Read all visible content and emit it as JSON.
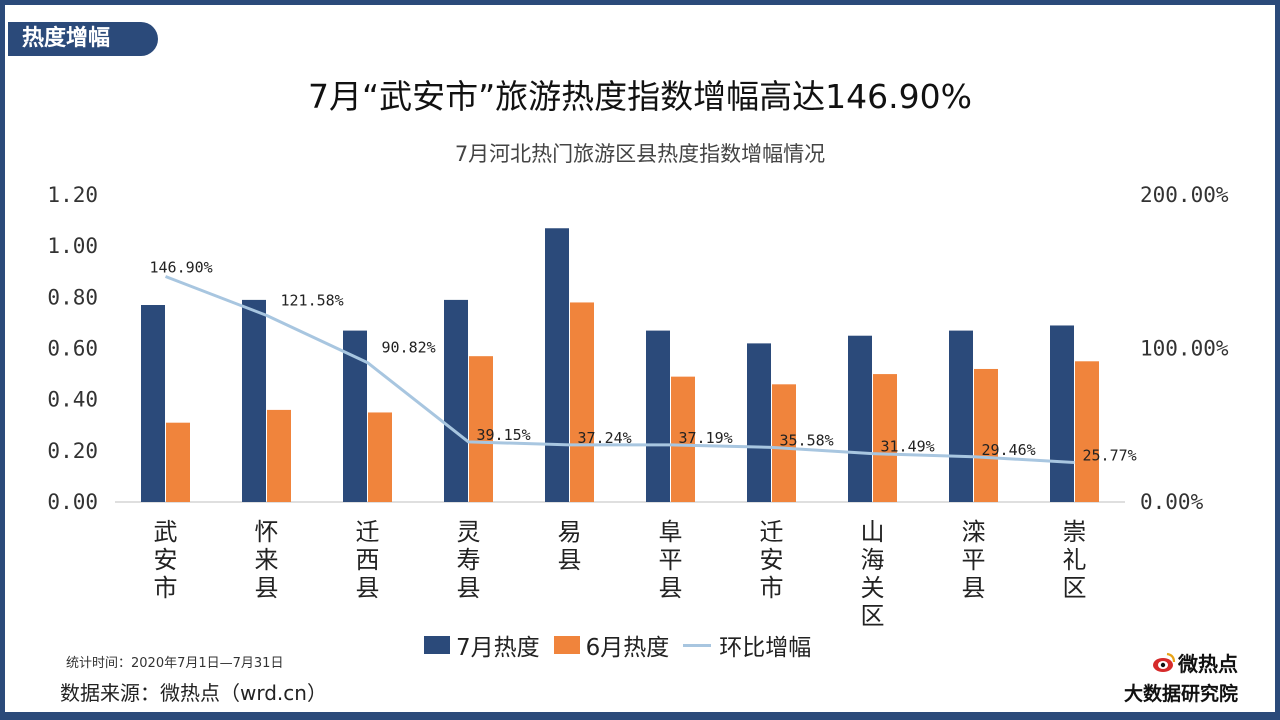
{
  "header": {
    "tag": "热度增幅",
    "title": "7月“武安市”旅游热度指数增幅高达146.90%"
  },
  "chart_data": {
    "type": "bar",
    "title": "7月河北热门旅游区县热度指数增幅情况",
    "categories": [
      "武安市",
      "怀来县",
      "迁西县",
      "灵寿县",
      "易县",
      "阜平县",
      "迁安市",
      "山海关区",
      "滦平县",
      "崇礼区"
    ],
    "series": [
      {
        "name": "7月热度",
        "type": "bar",
        "axis": "left",
        "color": "#2b4a7a",
        "values": [
          0.77,
          0.79,
          0.67,
          0.79,
          1.07,
          0.67,
          0.62,
          0.65,
          0.67,
          0.69
        ]
      },
      {
        "name": "6月热度",
        "type": "bar",
        "axis": "left",
        "color": "#f0843c",
        "values": [
          0.31,
          0.36,
          0.35,
          0.57,
          0.78,
          0.49,
          0.46,
          0.5,
          0.52,
          0.55
        ]
      },
      {
        "name": "环比增幅",
        "type": "line",
        "axis": "right",
        "color": "#a8c6e0",
        "values": [
          146.9,
          121.58,
          90.82,
          39.15,
          37.24,
          37.19,
          35.58,
          31.49,
          29.46,
          25.77
        ],
        "labels": [
          "146.90%",
          "121.58%",
          "90.82%",
          "39.15%",
          "37.24%",
          "37.19%",
          "35.58%",
          "31.49%",
          "29.46%",
          "25.77%"
        ]
      }
    ],
    "y_left": {
      "ylim": [
        0,
        1.2
      ],
      "ticks": [
        "0.00",
        "0.20",
        "0.40",
        "0.60",
        "0.80",
        "1.00",
        "1.20"
      ]
    },
    "y_right": {
      "ylim": [
        0,
        200
      ],
      "ticks": [
        "0.00%",
        "100.00%",
        "200.00%"
      ]
    },
    "grid": false,
    "legend_position": "bottom"
  },
  "footer": {
    "note": "统计时间：2020年7月1日—7月31日",
    "source": "数据来源：微热点（wrd.cn）",
    "brand_top": "微热点",
    "brand_bottom": "大数据研究院"
  }
}
